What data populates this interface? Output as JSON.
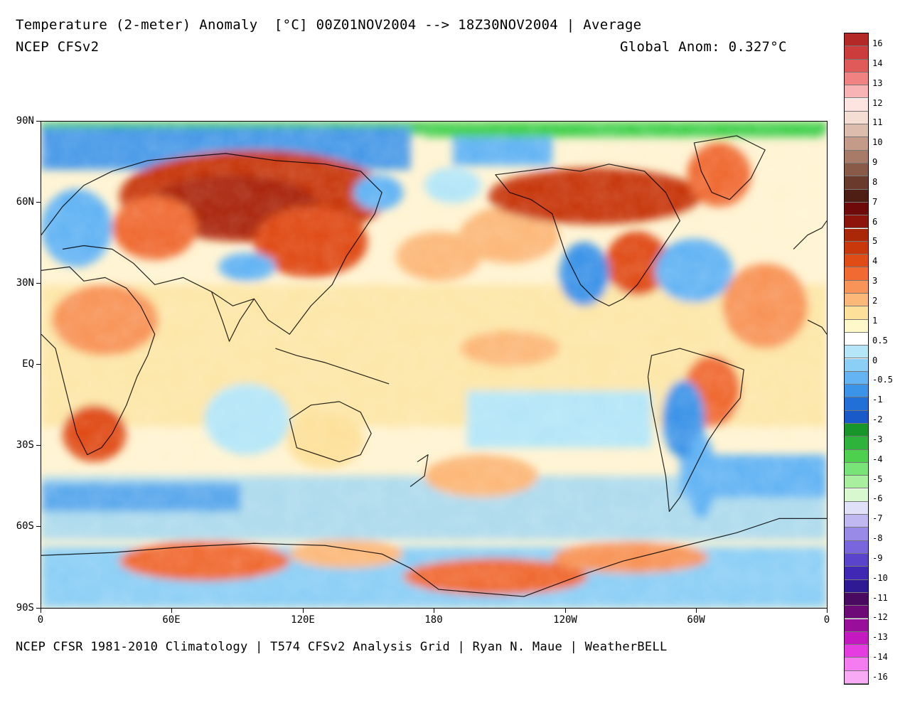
{
  "header": {
    "title": "Temperature (2-meter) Anomaly  [°C] 00Z01NOV2004 --> 18Z30NOV2004 | Average",
    "model": "NCEP CFSv2",
    "global_anom": "Global Anom: 0.327°C"
  },
  "footer": "NCEP CFSR 1981-2010 Climatology | T574 CFSv2 Analysis Grid | Ryan N. Maue | WeatherBELL",
  "axes": {
    "y_labels": [
      "90N",
      "60N",
      "30N",
      "EQ",
      "30S",
      "60S",
      "90S"
    ],
    "x_labels": [
      "0",
      "60E",
      "120E",
      "180",
      "120W",
      "60W",
      "0"
    ]
  },
  "colorbar": {
    "labels": [
      "16",
      "14",
      "13",
      "12",
      "11",
      "10",
      "9",
      "8",
      "7",
      "6",
      "5",
      "4",
      "3",
      "2",
      "1",
      "0.5",
      "0",
      "-0.5",
      "-1",
      "-2",
      "-3",
      "-4",
      "-5",
      "-6",
      "-7",
      "-8",
      "-9",
      "-10",
      "-11",
      "-12",
      "-13",
      "-14",
      "-16"
    ],
    "colors": [
      "#b42828",
      "#cd3c3c",
      "#e15a5a",
      "#f08282",
      "#f8b4b4",
      "#fde4e0",
      "#f4ded4",
      "#dcbcac",
      "#c49a88",
      "#a87a68",
      "#8a5a48",
      "#6a3a2c",
      "#4e1e14",
      "#6e0a0a",
      "#8c140a",
      "#aa2808",
      "#c8380a",
      "#e04c16",
      "#f06a32",
      "#f89458",
      "#fcb878",
      "#fde09a",
      "#fff8c8",
      "#ffffff",
      "#b4e6f8",
      "#8ccff6",
      "#64b4f4",
      "#3c94e8",
      "#2070d8",
      "#1a5ac8",
      "#18962a",
      "#2eb43c",
      "#4cd04e",
      "#78e478",
      "#a8f0a0",
      "#d8f8d0",
      "#e0e0f8",
      "#c0b8f0",
      "#9a8ae8",
      "#7a66dc",
      "#5a44cc",
      "#4028b4",
      "#301a94",
      "#4a0a62",
      "#6e0a78",
      "#9a0e9c",
      "#c418c0",
      "#e43ce0",
      "#f47cf0",
      "#f8aaf4"
    ]
  }
}
